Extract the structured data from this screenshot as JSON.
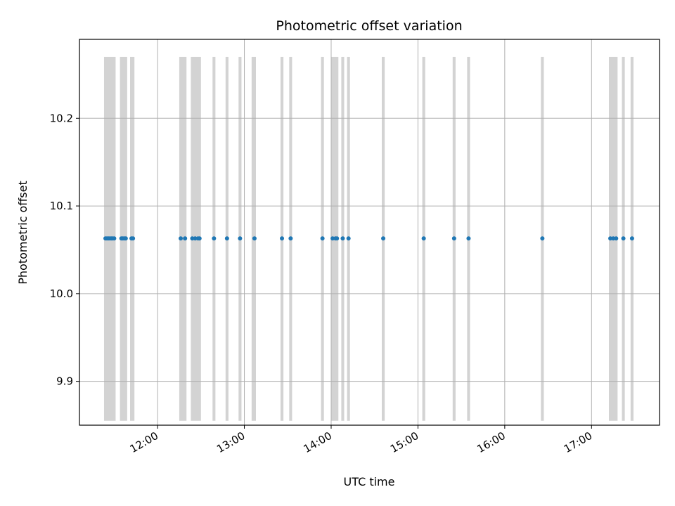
{
  "chart_data": {
    "type": "scatter",
    "title": "Photometric offset variation",
    "xlabel": "UTC time",
    "ylabel": "Photometric offset",
    "xlim": [
      "11:06",
      "17:47"
    ],
    "ylim": [
      9.85,
      10.29
    ],
    "x_ticks": [
      "12:00",
      "13:00",
      "14:00",
      "15:00",
      "16:00",
      "17:00"
    ],
    "y_ticks": [
      9.9,
      10.0,
      10.1,
      10.2
    ],
    "grid": true,
    "span_y_range": [
      9.855,
      10.27
    ],
    "spans": [
      [
        "11:23",
        "11:31"
      ],
      [
        "11:34",
        "11:39"
      ],
      [
        "11:41",
        "11:44"
      ],
      [
        "12:15",
        "12:20"
      ],
      [
        "12:23",
        "12:30"
      ],
      [
        "12:38",
        "12:40"
      ],
      [
        "12:47",
        "12:49"
      ],
      [
        "12:56",
        "12:58"
      ],
      [
        "13:05",
        "13:08"
      ],
      [
        "13:25",
        "13:27"
      ],
      [
        "13:31",
        "13:33"
      ],
      [
        "13:53",
        "13:55"
      ],
      [
        "14:00",
        "14:05"
      ],
      [
        "14:07",
        "14:09"
      ],
      [
        "14:11",
        "14:13"
      ],
      [
        "14:35",
        "14:37"
      ],
      [
        "15:03",
        "15:05"
      ],
      [
        "15:24",
        "15:26"
      ],
      [
        "15:34",
        "15:36"
      ],
      [
        "16:25",
        "16:27"
      ],
      [
        "17:12",
        "17:18"
      ],
      [
        "17:21",
        "17:23"
      ],
      [
        "17:27",
        "17:29"
      ]
    ],
    "points": {
      "y": 10.063,
      "x": [
        "11:24",
        "11:25",
        "11:26",
        "11:27",
        "11:28",
        "11:29",
        "11:30",
        "11:35",
        "11:36",
        "11:37",
        "11:38",
        "11:42",
        "11:43",
        "12:16",
        "12:19",
        "12:24",
        "12:26",
        "12:28",
        "12:29",
        "12:39",
        "12:48",
        "12:57",
        "13:07",
        "13:26",
        "13:32",
        "13:54",
        "14:01",
        "14:03",
        "14:04",
        "14:08",
        "14:12",
        "14:36",
        "15:04",
        "15:25",
        "15:35",
        "16:26",
        "17:13",
        "17:15",
        "17:17",
        "17:22",
        "17:28"
      ]
    },
    "colors": {
      "points": "#1f77b4",
      "spans": "#d3d3d3",
      "grid": "#b0b0b0"
    }
  }
}
